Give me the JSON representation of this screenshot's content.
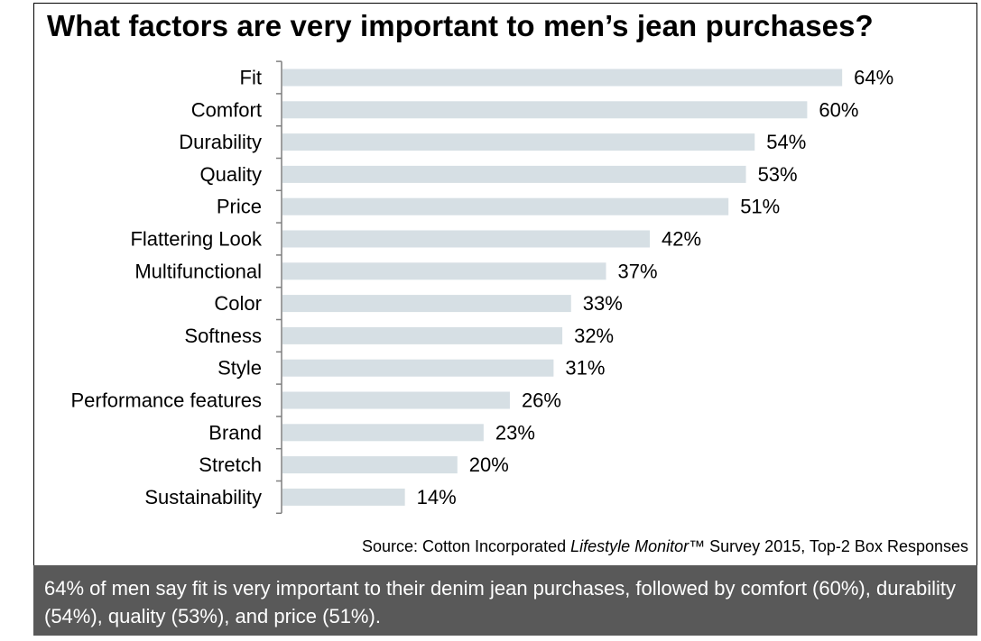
{
  "title": "What factors are very important to men’s jean purchases?",
  "source": {
    "prefix": "Source: Cotton Incorporated ",
    "italic": "Lifestyle Monitor",
    "suffix": "™ Survey 2015, Top-2 Box Responses"
  },
  "footer": "64% of men say fit is very important to their denim jean purchases, followed by comfort (60%), durability (54%), quality (53%), and price (51%).",
  "colors": {
    "bar": "#d6dfe4",
    "axis": "#7f7f7f",
    "footer_bg": "#595959"
  },
  "chart_data": {
    "type": "bar",
    "orientation": "horizontal",
    "title": "What factors are very important to men’s jean purchases?",
    "categories": [
      "Fit",
      "Comfort",
      "Durability",
      "Quality",
      "Price",
      "Flattering Look",
      "Multifunctional",
      "Color",
      "Softness",
      "Style",
      "Performance features",
      "Brand",
      "Stretch",
      "Sustainability"
    ],
    "values": [
      64,
      60,
      54,
      53,
      51,
      42,
      37,
      33,
      32,
      31,
      26,
      23,
      20,
      14
    ],
    "value_labels": [
      "64%",
      "60%",
      "54%",
      "53%",
      "51%",
      "42%",
      "37%",
      "33%",
      "32%",
      "31%",
      "26%",
      "23%",
      "20%",
      "14%"
    ],
    "unit": "%",
    "grid": false,
    "legend": "none"
  }
}
